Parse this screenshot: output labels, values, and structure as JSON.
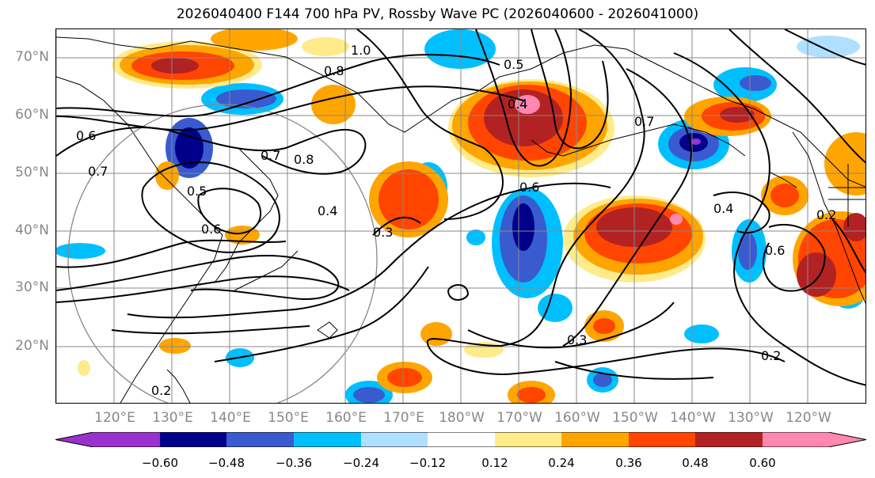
{
  "title": "2026040400 F144 700 hPa PV, Rossby Wave PC (2026040600 - 2026041000)",
  "lat_labels": [
    "70°N",
    "60°N",
    "50°N",
    "40°N",
    "30°N",
    "20°N"
  ],
  "lon_labels": [
    "120°E",
    "130°E",
    "140°E",
    "150°E",
    "160°E",
    "170°E",
    "180°W",
    "170°W",
    "160°W",
    "150°W",
    "140°W",
    "130°W",
    "120°W"
  ],
  "contour_labels": [
    "1.0",
    "0.8",
    "0.5",
    "0.4",
    "0.6",
    "0.7",
    "0.8",
    "0.5",
    "0.6",
    "0.4",
    "0.3",
    "0.7",
    "0.4",
    "0.6",
    "0.2",
    "0.3",
    "0.2",
    "0.2",
    "0.6",
    "0.7"
  ],
  "colorbar": {
    "ticks": [
      "−0.60",
      "−0.48",
      "−0.36",
      "−0.24",
      "−0.12",
      "0.12",
      "0.24",
      "0.36",
      "0.48",
      "0.60"
    ],
    "colors": [
      "#9932cc",
      "#00008b",
      "#3a5bcf",
      "#00bfff",
      "#b0e0ff",
      "#ffffff",
      "#ffeb8a",
      "#ffa500",
      "#ff4500",
      "#b22222",
      "#ff88b0"
    ]
  }
}
